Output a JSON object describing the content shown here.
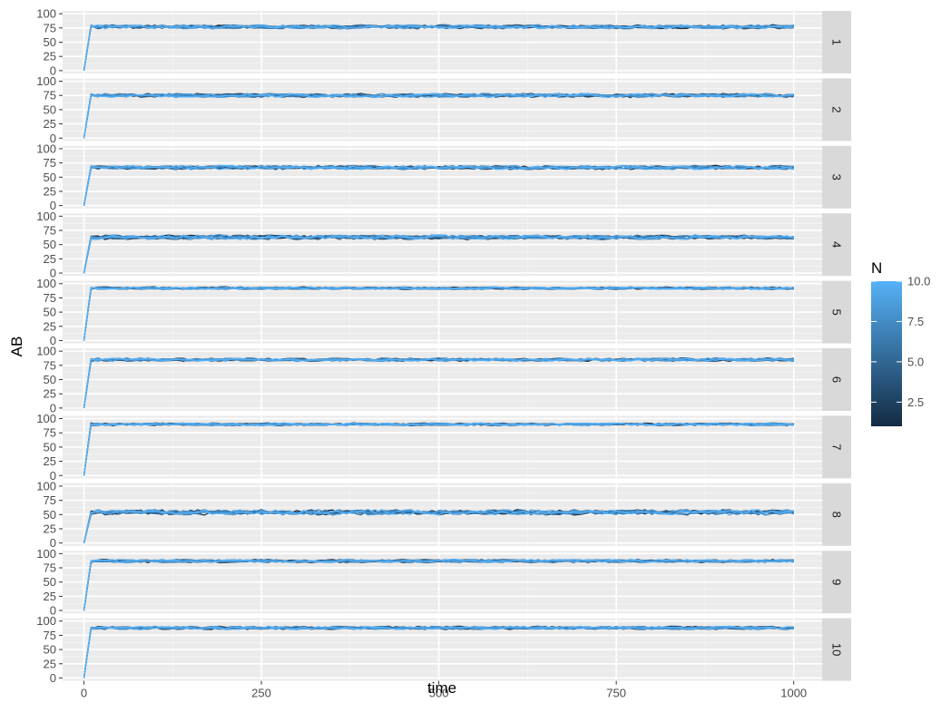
{
  "chart_data": {
    "type": "line",
    "facet_by": "panel",
    "xlabel": "time",
    "ylabel": "AB",
    "xlim": [
      -30,
      1040
    ],
    "ylim": [
      -5,
      105
    ],
    "x_ticks": [
      0,
      250,
      500,
      750,
      1000
    ],
    "y_ticks": [
      0,
      25,
      50,
      75,
      100
    ],
    "grid": true,
    "color_scale": {
      "title": "N",
      "low_color": "#132B43",
      "high_color": "#56B1F7",
      "range": [
        1,
        10
      ],
      "breaks": [
        2.5,
        5.0,
        7.5,
        10.0
      ],
      "break_labels": [
        "2.5",
        "5.0",
        "7.5",
        "10.0"
      ]
    },
    "legend_position": "right",
    "panels": [
      {
        "strip": "1",
        "plateau": 77,
        "noise": 3
      },
      {
        "strip": "2",
        "plateau": 75,
        "noise": 3
      },
      {
        "strip": "3",
        "plateau": 67,
        "noise": 3
      },
      {
        "strip": "4",
        "plateau": 63,
        "noise": 3.5
      },
      {
        "strip": "5",
        "plateau": 92,
        "noise": 2
      },
      {
        "strip": "6",
        "plateau": 85,
        "noise": 2.5
      },
      {
        "strip": "7",
        "plateau": 90,
        "noise": 2
      },
      {
        "strip": "8",
        "plateau": 54,
        "noise": 4
      },
      {
        "strip": "9",
        "plateau": 87,
        "noise": 2.5
      },
      {
        "strip": "10",
        "plateau": 88,
        "noise": 2.5
      }
    ],
    "series_N": [
      1,
      2,
      3,
      4,
      5,
      6,
      7,
      8,
      9,
      10
    ],
    "x_step": 10,
    "x_max": 1000,
    "initial_value": 0
  }
}
